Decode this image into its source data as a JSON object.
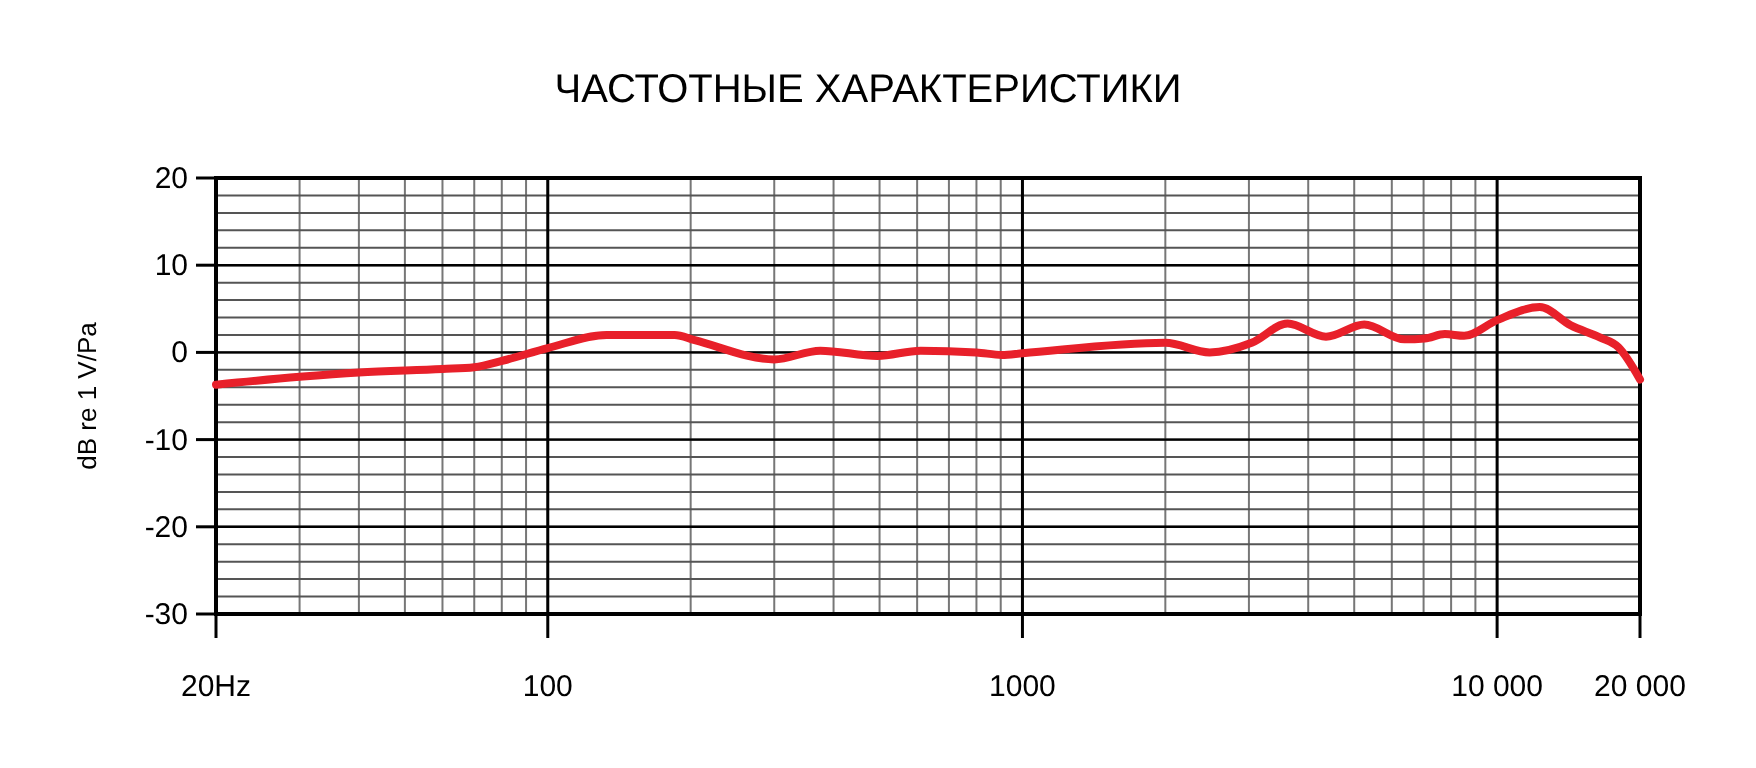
{
  "chart_data": {
    "type": "line",
    "title": "ЧАСТОТНЫЕ ХАРАКТЕРИСТИКИ",
    "ylabel": "dB re 1 V/Pa",
    "log": "x",
    "x": [
      20,
      30,
      40,
      60,
      70,
      81,
      100,
      133,
      185,
      204,
      300,
      375,
      495,
      610,
      800,
      905,
      1000,
      2000,
      2480,
      3040,
      3620,
      4360,
      5250,
      6380,
      7040,
      7760,
      8520,
      10000,
      12300,
      14300,
      16500,
      18000,
      20000
    ],
    "series": [
      {
        "color": "#e8202a",
        "values": [
          -3.7,
          -2.8,
          -2.3,
          -1.9,
          -1.7,
          -0.9,
          0.5,
          2,
          2,
          1.4,
          -0.8,
          0.2,
          -0.4,
          0.2,
          0,
          -0.3,
          -0.1,
          1.1,
          0,
          1.1,
          3.3,
          1.8,
          3.2,
          1.5,
          1.6,
          2.1,
          1.9,
          3.7,
          5.2,
          3.1,
          1.7,
          0.6,
          -3.1
        ]
      }
    ],
    "xlim": [
      20,
      20000
    ],
    "xticks": [
      {
        "value": 20,
        "label": "20Hz"
      },
      100,
      1000,
      {
        "value": 10000,
        "label": "10 000"
      },
      {
        "value": 20000,
        "label": "20 000"
      }
    ],
    "ylim": [
      -30,
      20
    ],
    "yticks": [
      -30,
      -20,
      -10,
      0,
      10,
      20
    ],
    "grid": true,
    "marker": "none",
    "line_style": "solid"
  }
}
